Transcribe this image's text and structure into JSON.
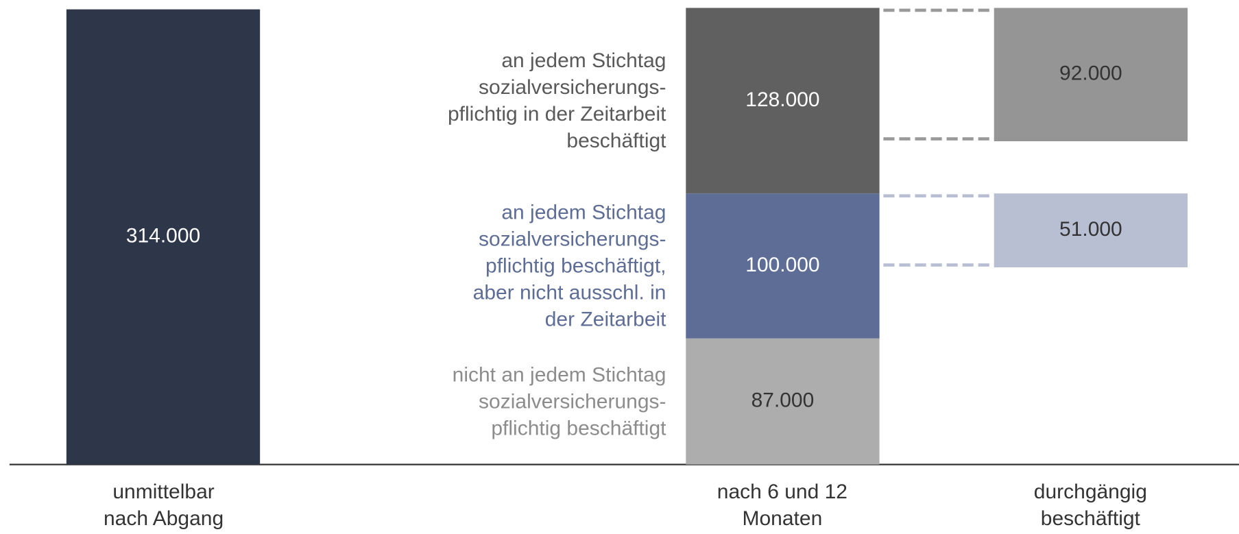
{
  "chart_data": {
    "type": "bar",
    "categories": [
      "unmittelbar\nnach Abgang",
      "nach 6 und 12\nMonaten",
      "durchgängig\nbeschäftigt"
    ],
    "series": [
      {
        "colors": [
          "#2e3649",
          null,
          null
        ],
        "values": [
          314000,
          null,
          null
        ],
        "value_labels": [
          "314.000",
          null,
          null
        ]
      },
      {
        "name": "nicht an jedem Stichtag\nsozialversicherungs-\npflichtig beschäftigt",
        "label_color": "#8c8c8c",
        "colors": [
          null,
          "#adadad",
          null
        ],
        "values": [
          null,
          87000,
          null
        ],
        "value_labels": [
          null,
          "87.000",
          null
        ]
      },
      {
        "name": "an jedem Stichtag\nsozialversicherungs-\npflichtig beschäftigt,\naber nicht ausschl. in\nder Zeitarbeit",
        "label_color": "#5d6d96",
        "colors": [
          null,
          "#5d6d96",
          "#b8bfd2"
        ],
        "values": [
          null,
          100000,
          51000
        ],
        "value_labels": [
          null,
          "100.000",
          "51.000"
        ]
      },
      {
        "name": "an jedem Stichtag\nsozialversicherungs-\npflichtig in der Zeitarbeit\nbeschäftigt",
        "label_color": "#595959",
        "colors": [
          null,
          "#606060",
          "#959595"
        ],
        "values": [
          null,
          128000,
          92000
        ],
        "value_labels": [
          null,
          "128.000",
          "92.000"
        ]
      }
    ]
  }
}
